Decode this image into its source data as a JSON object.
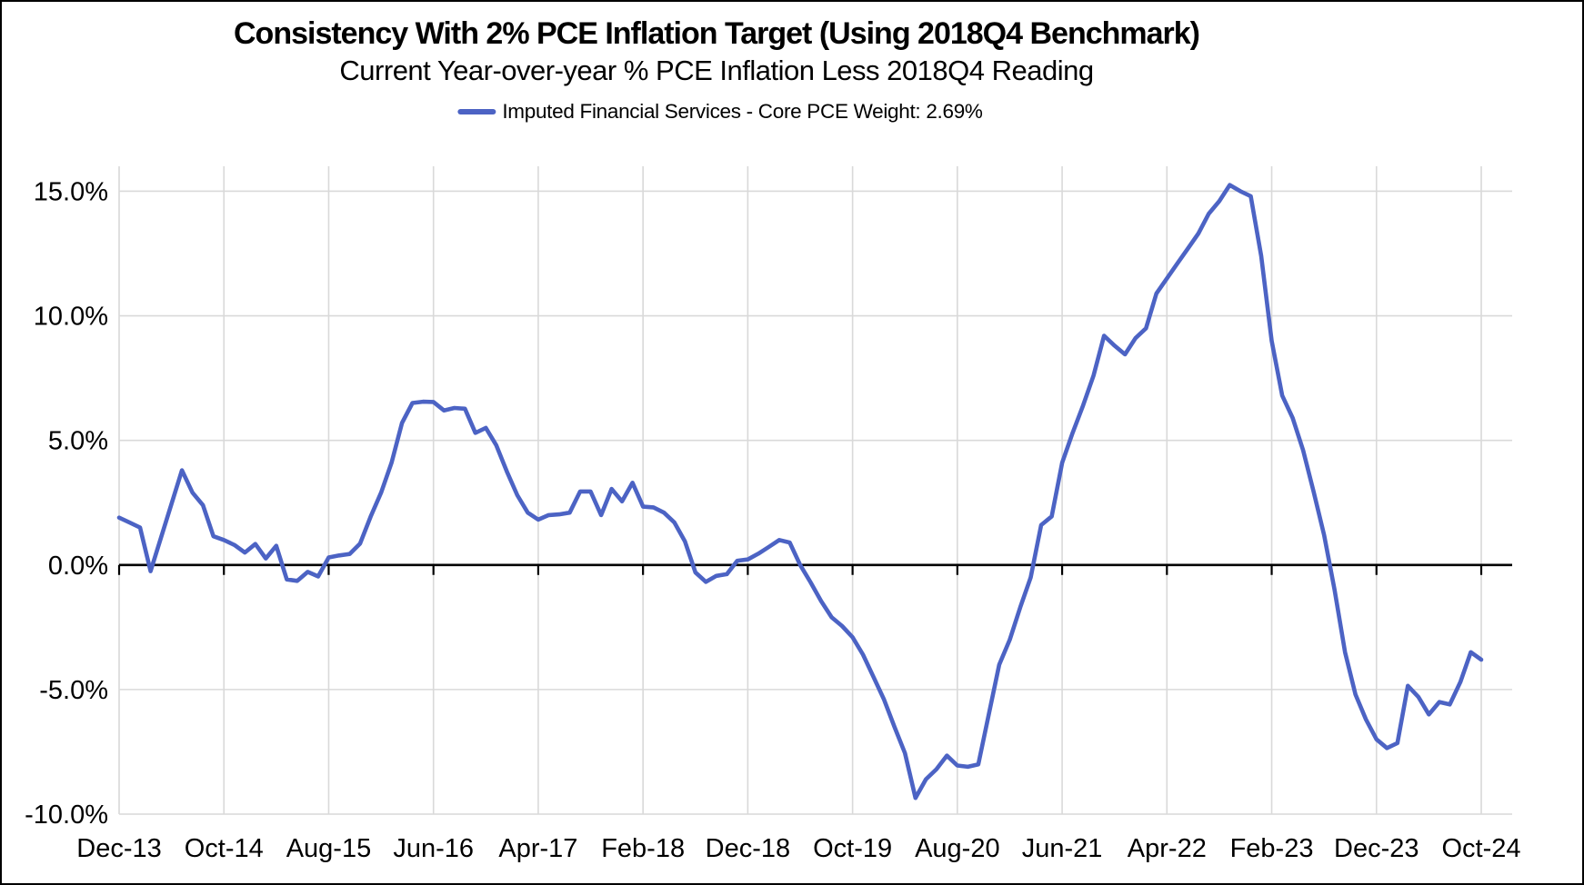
{
  "chart": {
    "title": "Consistency With 2% PCE Inflation Target (Using 2018Q4 Benchmark)",
    "subtitle": "Current Year-over-year % PCE Inflation Less 2018Q4 Reading",
    "legend": {
      "label": "Imputed Financial Services - Core PCE Weight: 2.69%",
      "marker_color": "#4C63C4"
    }
  },
  "chart_data": {
    "type": "line",
    "title": "Consistency With 2% PCE Inflation Target (Using 2018Q4 Benchmark)",
    "subtitle": "Current Year-over-year % PCE Inflation Less 2018Q4 Reading",
    "xlabel": "",
    "ylabel": "",
    "ylim": [
      -10,
      16
    ],
    "grid": true,
    "legend_position": "top",
    "x_start": "Dec-13",
    "x_end": "Oct-24",
    "frequency": "monthly",
    "x_tick_positions": [
      0,
      10,
      20,
      30,
      40,
      50,
      60,
      70,
      80,
      90,
      100,
      110,
      120,
      130
    ],
    "x_tick_labels": [
      "Dec-13",
      "Oct-14",
      "Aug-15",
      "Jun-16",
      "Apr-17",
      "Feb-18",
      "Dec-18",
      "Oct-19",
      "Aug-20",
      "Jun-21",
      "Apr-22",
      "Feb-23",
      "Dec-23",
      "Oct-24"
    ],
    "y_tick_values": [
      15,
      10,
      5,
      0,
      -5,
      -10
    ],
    "y_tick_labels": [
      "15.0%",
      "10.0%",
      "5.0%",
      "0.0%",
      "-5.0%",
      "-10.0%"
    ],
    "zero_line": true,
    "colors": {
      "series": "#4C63C4",
      "gridline": "#D9D9D9",
      "zero_axis": "#000000",
      "text": "#000000"
    },
    "series": [
      {
        "name": "Imputed Financial Services - Core PCE Weight: 2.69%",
        "color": "#4C63C4",
        "values": [
          1.9,
          1.7,
          1.5,
          -0.25,
          1.1,
          2.45,
          3.8,
          2.9,
          2.4,
          1.15,
          1.0,
          0.8,
          0.5,
          0.84,
          0.26,
          0.77,
          -0.58,
          -0.64,
          -0.28,
          -0.46,
          0.3,
          0.38,
          0.44,
          0.86,
          1.94,
          2.9,
          4.1,
          5.7,
          6.5,
          6.55,
          6.54,
          6.2,
          6.3,
          6.27,
          5.3,
          5.5,
          4.8,
          3.75,
          2.8,
          2.1,
          1.82,
          2.0,
          2.03,
          2.1,
          2.95,
          2.95,
          2.0,
          3.05,
          2.55,
          3.3,
          2.34,
          2.31,
          2.1,
          1.7,
          0.95,
          -0.3,
          -0.68,
          -0.44,
          -0.37,
          0.17,
          0.22,
          0.45,
          0.72,
          1.0,
          0.9,
          0.0,
          -0.7,
          -1.45,
          -2.1,
          -2.45,
          -2.9,
          -3.6,
          -4.5,
          -5.4,
          -6.5,
          -7.55,
          -9.35,
          -8.6,
          -8.2,
          -7.65,
          -8.05,
          -8.1,
          -8.0,
          -6.0,
          -4.0,
          -3.0,
          -1.7,
          -0.5,
          1.6,
          1.95,
          4.1,
          5.3,
          6.4,
          7.6,
          9.2,
          8.8,
          8.45,
          9.1,
          9.5,
          10.9,
          11.5,
          12.1,
          12.7,
          13.3,
          14.1,
          14.6,
          15.25,
          15.0,
          14.8,
          12.4,
          9.0,
          6.8,
          5.9,
          4.6,
          2.95,
          1.2,
          -1.0,
          -3.5,
          -5.2,
          -6.2,
          -7.0,
          -7.35,
          -7.15,
          -4.85,
          -5.3,
          -6.0,
          -5.5,
          -5.6,
          -4.7,
          -3.5,
          -3.8
        ]
      }
    ]
  }
}
